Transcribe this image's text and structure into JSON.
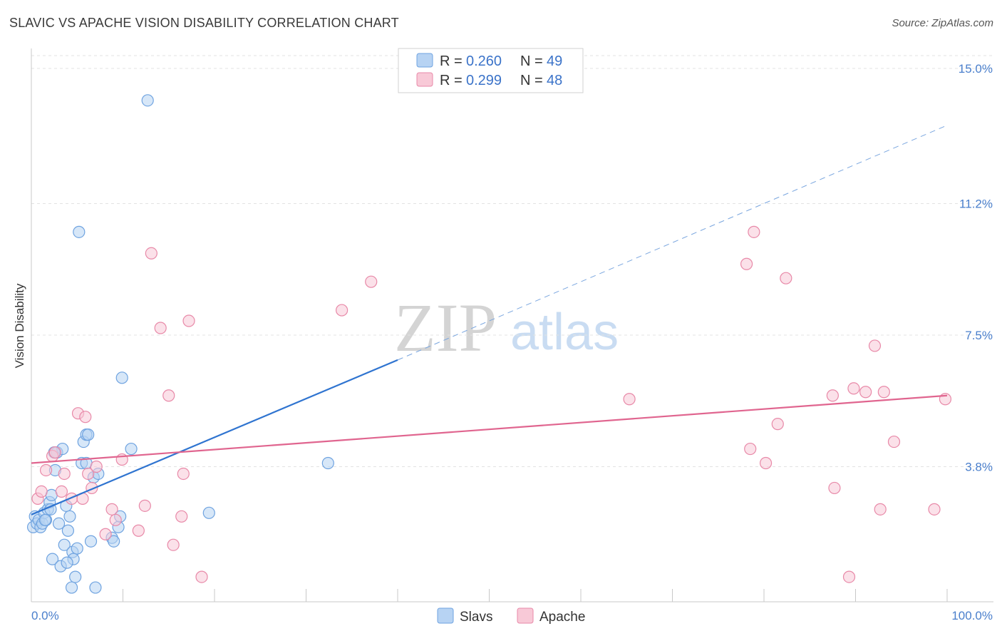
{
  "header": {
    "title": "SLAVIC VS APACHE VISION DISABILITY CORRELATION CHART",
    "source": "Source: ZipAtlas.com"
  },
  "watermark": {
    "zip": "ZIP",
    "atlas": "atlas"
  },
  "legend": {
    "rows": [
      {
        "r_label": "R =",
        "r_value": "0.260",
        "n_label": "N =",
        "n_value": "49",
        "color": "#a9c8f0"
      },
      {
        "r_label": "R =",
        "r_value": "0.299",
        "n_label": "N =",
        "n_value": "48",
        "color": "#f6b8cb"
      }
    ]
  },
  "bottom_legend": {
    "items": [
      {
        "label": "Slavs"
      },
      {
        "label": "Apache"
      }
    ]
  },
  "chart_data": {
    "type": "scatter",
    "title": "SLAVIC VS APACHE VISION DISABILITY CORRELATION CHART",
    "xlabel": "",
    "ylabel": "Vision Disability",
    "xlim": [
      0,
      100
    ],
    "ylim": [
      0,
      15.4
    ],
    "x_tick_labels": [
      "0.0%",
      "100.0%"
    ],
    "y_ticks": [
      3.8,
      7.5,
      11.2,
      15.0
    ],
    "y_tick_labels": [
      "3.8%",
      "7.5%",
      "11.2%",
      "15.0%"
    ],
    "grid": true,
    "legend_position": "top-center",
    "series": [
      {
        "name": "Slavs",
        "color": "#6fa3e0",
        "fill": "#b7d3f3",
        "trend": {
          "x": [
            0,
            40
          ],
          "y": [
            2.45,
            6.8
          ],
          "extend_dashed_to_x": 100,
          "extend_y": 13.4,
          "color": "#2f74d0"
        },
        "points": [
          [
            0.2,
            2.1
          ],
          [
            0.4,
            2.4
          ],
          [
            0.6,
            2.2
          ],
          [
            0.8,
            2.3
          ],
          [
            1.0,
            2.1
          ],
          [
            1.2,
            2.2
          ],
          [
            1.4,
            2.5
          ],
          [
            1.6,
            2.3
          ],
          [
            1.8,
            2.6
          ],
          [
            2.0,
            2.8
          ],
          [
            2.1,
            2.6
          ],
          [
            2.2,
            3.0
          ],
          [
            2.3,
            1.2
          ],
          [
            2.6,
            3.7
          ],
          [
            2.8,
            4.2
          ],
          [
            3.0,
            2.2
          ],
          [
            3.2,
            1.0
          ],
          [
            3.4,
            4.3
          ],
          [
            3.6,
            1.6
          ],
          [
            3.8,
            2.7
          ],
          [
            4.0,
            2.0
          ],
          [
            4.2,
            2.4
          ],
          [
            4.4,
            0.4
          ],
          [
            4.5,
            1.4
          ],
          [
            4.6,
            1.2
          ],
          [
            4.8,
            0.7
          ],
          [
            5.0,
            1.5
          ],
          [
            5.5,
            3.9
          ],
          [
            5.7,
            4.5
          ],
          [
            6.0,
            3.9
          ],
          [
            6.0,
            4.7
          ],
          [
            6.2,
            4.7
          ],
          [
            6.5,
            1.7
          ],
          [
            6.8,
            3.5
          ],
          [
            7.0,
            0.4
          ],
          [
            7.3,
            3.6
          ],
          [
            5.2,
            10.4
          ],
          [
            8.8,
            1.8
          ],
          [
            9.0,
            1.7
          ],
          [
            9.5,
            2.1
          ],
          [
            9.7,
            2.4
          ],
          [
            9.9,
            6.3
          ],
          [
            10.9,
            4.3
          ],
          [
            12.7,
            14.1
          ],
          [
            19.4,
            2.5
          ],
          [
            32.4,
            3.9
          ],
          [
            1.5,
            2.3
          ],
          [
            2.5,
            4.2
          ],
          [
            3.9,
            1.1
          ]
        ]
      },
      {
        "name": "Apache",
        "color": "#e889a8",
        "fill": "#f8c9d7",
        "trend": {
          "x": [
            0,
            100
          ],
          "y": [
            3.9,
            5.8
          ],
          "color": "#e0658f"
        },
        "points": [
          [
            0.7,
            2.9
          ],
          [
            1.1,
            3.1
          ],
          [
            1.6,
            3.7
          ],
          [
            2.3,
            4.1
          ],
          [
            2.6,
            4.2
          ],
          [
            3.3,
            3.1
          ],
          [
            3.6,
            3.6
          ],
          [
            4.4,
            2.9
          ],
          [
            5.1,
            5.3
          ],
          [
            5.6,
            2.9
          ],
          [
            5.9,
            5.2
          ],
          [
            6.2,
            3.6
          ],
          [
            6.6,
            3.2
          ],
          [
            7.1,
            3.8
          ],
          [
            8.1,
            1.9
          ],
          [
            8.8,
            2.6
          ],
          [
            9.2,
            2.3
          ],
          [
            9.9,
            4.0
          ],
          [
            11.7,
            2.0
          ],
          [
            12.4,
            2.7
          ],
          [
            13.1,
            9.8
          ],
          [
            14.1,
            7.7
          ],
          [
            15.0,
            5.8
          ],
          [
            15.5,
            1.6
          ],
          [
            16.4,
            2.4
          ],
          [
            16.6,
            3.6
          ],
          [
            17.2,
            7.9
          ],
          [
            18.6,
            0.7
          ],
          [
            33.9,
            8.2
          ],
          [
            37.1,
            9.0
          ],
          [
            65.3,
            5.7
          ],
          [
            78.1,
            9.5
          ],
          [
            78.5,
            4.3
          ],
          [
            78.9,
            10.4
          ],
          [
            80.2,
            3.9
          ],
          [
            81.5,
            5.0
          ],
          [
            82.4,
            9.1
          ],
          [
            87.5,
            5.8
          ],
          [
            87.7,
            3.2
          ],
          [
            89.3,
            0.7
          ],
          [
            89.8,
            6.0
          ],
          [
            91.1,
            5.9
          ],
          [
            92.1,
            7.2
          ],
          [
            92.7,
            2.6
          ],
          [
            93.1,
            5.9
          ],
          [
            94.2,
            4.5
          ],
          [
            98.6,
            2.6
          ],
          [
            99.8,
            5.7
          ]
        ]
      }
    ]
  }
}
